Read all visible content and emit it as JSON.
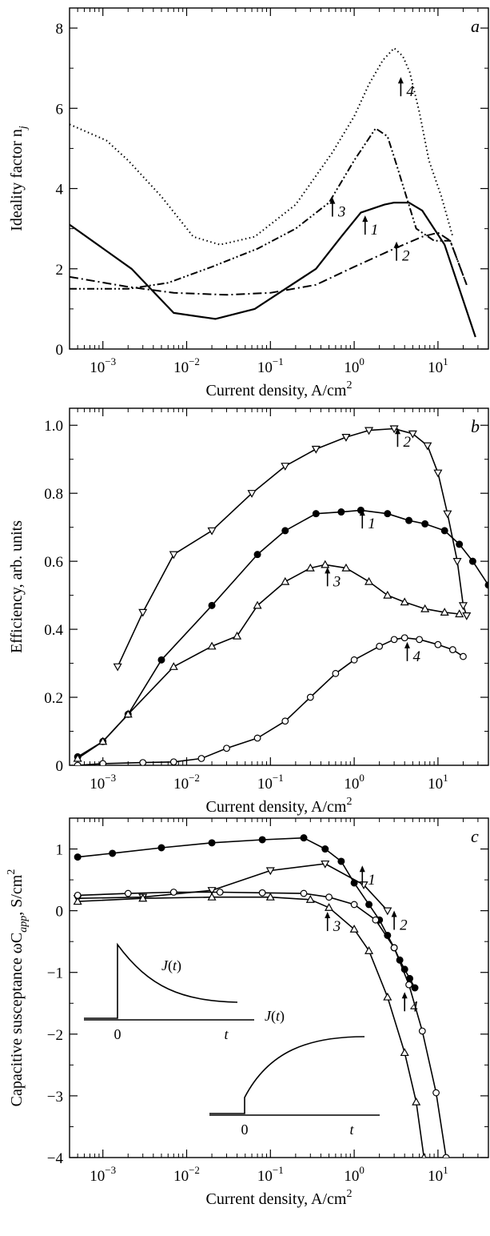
{
  "chart_data": [
    {
      "panel": "a",
      "type": "line",
      "xscale": "log",
      "xlim": [
        0.0004,
        40
      ],
      "ylim": [
        0,
        8.5
      ],
      "xlabel": "Current density, A/cm²",
      "ylabel": "Ideality factor n",
      "ylabel_sub": "j",
      "xticks": [
        {
          "value": 0.001,
          "base": "10",
          "exp": "−3"
        },
        {
          "value": 0.01,
          "base": "10",
          "exp": "−2"
        },
        {
          "value": 0.1,
          "base": "10",
          "exp": "−1"
        },
        {
          "value": 1,
          "base": "10",
          "exp": "0"
        },
        {
          "value": 10,
          "base": "10",
          "exp": "1"
        }
      ],
      "yticks": [
        {
          "value": 0,
          "label": "0"
        },
        {
          "value": 2,
          "label": "2"
        },
        {
          "value": 4,
          "label": "4"
        },
        {
          "value": 6,
          "label": "6"
        },
        {
          "value": 8,
          "label": "8"
        }
      ],
      "series": [
        {
          "label": "1",
          "style": "solid",
          "x": [
            0.0004,
            0.0022,
            0.007,
            0.022,
            0.065,
            0.35,
            0.7,
            1.2,
            2.3,
            3.0,
            4.5,
            6.5,
            12,
            28
          ],
          "y": [
            3.1,
            2.0,
            0.9,
            0.75,
            1.0,
            2.0,
            2.8,
            3.4,
            3.6,
            3.65,
            3.65,
            3.45,
            2.6,
            0.3
          ],
          "label_at": [
            1.35,
            3.05
          ]
        },
        {
          "label": "2",
          "style": "dashdot",
          "x": [
            0.0004,
            0.002,
            0.007,
            0.03,
            0.1,
            0.35,
            1.0,
            3.0,
            6.5,
            10,
            14,
            22
          ],
          "y": [
            1.8,
            1.55,
            1.4,
            1.35,
            1.4,
            1.6,
            2.05,
            2.5,
            2.8,
            2.9,
            2.7,
            1.6
          ],
          "label_at": [
            3.2,
            2.4
          ]
        },
        {
          "label": "3",
          "style": "dashdotdot",
          "x": [
            0.0004,
            0.002,
            0.006,
            0.02,
            0.07,
            0.2,
            0.5,
            1.0,
            1.8,
            2.5,
            3.2,
            5.5,
            9,
            14,
            22
          ],
          "y": [
            1.5,
            1.5,
            1.65,
            2.05,
            2.5,
            3.0,
            3.65,
            4.7,
            5.5,
            5.3,
            4.6,
            3.0,
            2.7,
            2.7,
            1.6
          ],
          "label_at": [
            0.55,
            3.5
          ]
        },
        {
          "label": "4",
          "style": "dotted",
          "x": [
            0.0004,
            0.0011,
            0.002,
            0.005,
            0.012,
            0.025,
            0.065,
            0.2,
            0.55,
            1.0,
            1.5,
            2.2,
            3.0,
            3.8,
            4.6,
            6.0,
            7.8,
            11,
            15
          ],
          "y": [
            5.6,
            5.2,
            4.7,
            3.8,
            2.8,
            2.6,
            2.8,
            3.6,
            4.9,
            5.8,
            6.6,
            7.2,
            7.5,
            7.3,
            6.9,
            5.9,
            4.7,
            3.8,
            2.8
          ],
          "label_at": [
            3.6,
            6.5
          ]
        }
      ]
    },
    {
      "panel": "b",
      "type": "line",
      "xscale": "log",
      "xlim": [
        0.0004,
        40
      ],
      "ylim": [
        0,
        1.05
      ],
      "xlabel": "Current density, A/cm²",
      "ylabel": "Efficiency, arb. units",
      "xticks": [
        {
          "value": 0.001,
          "base": "10",
          "exp": "−3"
        },
        {
          "value": 0.01,
          "base": "10",
          "exp": "−2"
        },
        {
          "value": 0.1,
          "base": "10",
          "exp": "−1"
        },
        {
          "value": 1,
          "base": "10",
          "exp": "0"
        },
        {
          "value": 10,
          "base": "10",
          "exp": "1"
        }
      ],
      "yticks": [
        {
          "value": 0,
          "label": "0"
        },
        {
          "value": 0.2,
          "label": "0.2"
        },
        {
          "value": 0.4,
          "label": "0.4"
        },
        {
          "value": 0.6,
          "label": "0.6"
        },
        {
          "value": 0.8,
          "label": "0.8"
        },
        {
          "value": 1.0,
          "label": "1.0"
        }
      ],
      "series": [
        {
          "label": "1",
          "marker": "filled-circle",
          "x": [
            0.0005,
            0.001,
            0.002,
            0.005,
            0.02,
            0.07,
            0.15,
            0.35,
            0.7,
            1.2,
            2.5,
            4.5,
            7,
            12,
            18,
            26,
            40
          ],
          "y": [
            0.025,
            0.07,
            0.15,
            0.31,
            0.47,
            0.62,
            0.69,
            0.74,
            0.745,
            0.75,
            0.74,
            0.72,
            0.71,
            0.69,
            0.65,
            0.6,
            0.53
          ],
          "label_at": [
            1.25,
            0.72
          ]
        },
        {
          "label": "2",
          "marker": "down-triangle",
          "x": [
            0.0015,
            0.003,
            0.007,
            0.02,
            0.06,
            0.15,
            0.35,
            0.8,
            1.5,
            3.0,
            5.0,
            7.5,
            10,
            13,
            17,
            20,
            22
          ],
          "y": [
            0.29,
            0.45,
            0.62,
            0.69,
            0.8,
            0.88,
            0.93,
            0.965,
            0.985,
            0.99,
            0.975,
            0.94,
            0.86,
            0.74,
            0.6,
            0.47,
            0.44
          ],
          "label_at": [
            3.3,
            0.96
          ]
        },
        {
          "label": "3",
          "marker": "up-triangle",
          "x": [
            0.0005,
            0.001,
            0.002,
            0.007,
            0.02,
            0.04,
            0.07,
            0.15,
            0.3,
            0.45,
            0.8,
            1.5,
            2.5,
            4.0,
            7,
            12,
            18
          ],
          "y": [
            0.02,
            0.07,
            0.15,
            0.29,
            0.35,
            0.38,
            0.47,
            0.54,
            0.58,
            0.59,
            0.58,
            0.54,
            0.5,
            0.48,
            0.46,
            0.45,
            0.445
          ],
          "label_at": [
            0.48,
            0.55
          ]
        },
        {
          "label": "4",
          "marker": "open-circle",
          "x": [
            0.0005,
            0.001,
            0.003,
            0.007,
            0.015,
            0.03,
            0.07,
            0.15,
            0.3,
            0.6,
            1.0,
            2.0,
            3.0,
            4.0,
            6.0,
            10,
            15,
            20
          ],
          "y": [
            0.0,
            0.005,
            0.008,
            0.01,
            0.02,
            0.05,
            0.08,
            0.13,
            0.2,
            0.27,
            0.31,
            0.35,
            0.37,
            0.375,
            0.37,
            0.355,
            0.34,
            0.32
          ],
          "label_at": [
            4.3,
            0.33
          ]
        }
      ]
    },
    {
      "panel": "c",
      "type": "line",
      "xscale": "log",
      "xlim": [
        0.0004,
        40
      ],
      "ylim": [
        -4,
        1.5
      ],
      "xlabel": "Current density, A/cm²",
      "ylabel": "Capacitive susceptance ωC",
      "ylabel_sub": "app",
      "ylabel_tail": ", S/cm²",
      "xticks": [
        {
          "value": 0.001,
          "base": "10",
          "exp": "−3"
        },
        {
          "value": 0.01,
          "base": "10",
          "exp": "−2"
        },
        {
          "value": 0.1,
          "base": "10",
          "exp": "−1"
        },
        {
          "value": 1,
          "base": "10",
          "exp": "0"
        },
        {
          "value": 10,
          "base": "10",
          "exp": "1"
        }
      ],
      "yticks": [
        {
          "value": -4,
          "label": "−4"
        },
        {
          "value": -3,
          "label": "−3"
        },
        {
          "value": -2,
          "label": "−2"
        },
        {
          "value": -1,
          "label": "−1"
        },
        {
          "value": 0,
          "label": "0"
        },
        {
          "value": 1,
          "label": "1"
        }
      ],
      "series": [
        {
          "label": "1",
          "marker": "filled-circle",
          "x": [
            0.0005,
            0.0013,
            0.005,
            0.02,
            0.08,
            0.25,
            0.45,
            0.7,
            1.0,
            1.5,
            2.0,
            2.5,
            3.0,
            3.5,
            4.0,
            4.6,
            5.3
          ],
          "y": [
            0.87,
            0.93,
            1.02,
            1.1,
            1.15,
            1.18,
            1.0,
            0.8,
            0.45,
            0.1,
            -0.15,
            -0.4,
            -0.6,
            -0.8,
            -0.95,
            -1.1,
            -1.25
          ],
          "label_at": [
            1.25,
            0.55
          ]
        },
        {
          "label": "2",
          "marker": "down-triangle",
          "x": [
            0.0005,
            0.003,
            0.02,
            0.1,
            0.45,
            1.3,
            2.5
          ],
          "y": [
            0.2,
            0.22,
            0.33,
            0.65,
            0.76,
            0.42,
            0.0
          ],
          "label_at": [
            3.0,
            -0.18
          ]
        },
        {
          "label": "3",
          "marker": "up-triangle",
          "x": [
            0.0005,
            0.003,
            0.02,
            0.1,
            0.3,
            0.5,
            1.0,
            1.5,
            2.5,
            4.0,
            5.5,
            6.8
          ],
          "y": [
            0.15,
            0.2,
            0.22,
            0.22,
            0.18,
            0.05,
            -0.3,
            -0.65,
            -1.4,
            -2.3,
            -3.1,
            -4.0
          ],
          "label_at": [
            0.48,
            -0.2
          ]
        },
        {
          "label": "4",
          "marker": "open-circle",
          "x": [
            0.0005,
            0.002,
            0.007,
            0.025,
            0.08,
            0.25,
            0.5,
            1.0,
            1.8,
            3.0,
            4.5,
            6.5,
            9.5,
            12.5
          ],
          "y": [
            0.25,
            0.28,
            0.3,
            0.3,
            0.29,
            0.28,
            0.22,
            0.1,
            -0.15,
            -0.6,
            -1.2,
            -1.95,
            -2.95,
            -4.0
          ],
          "label_at": [
            4.0,
            -1.5
          ]
        }
      ],
      "insets": [
        {
          "func_label": "J(t)",
          "zero_label": "0",
          "t_label": "t",
          "shape": "spike-decay"
        },
        {
          "func_label": "J(t)",
          "zero_label": "0",
          "t_label": "t",
          "shape": "step-rise"
        }
      ]
    }
  ]
}
